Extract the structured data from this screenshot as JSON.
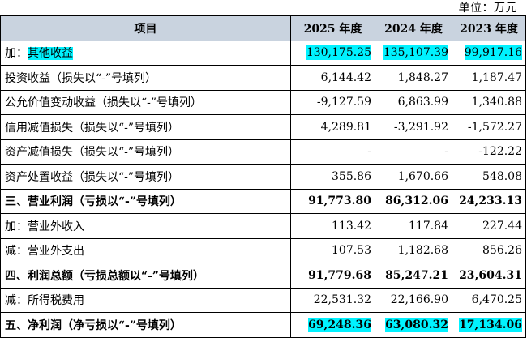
{
  "unit_label": "单位：万元",
  "header": {
    "item": "项目",
    "y2025": "2025 年度",
    "y2024": "2024 年度",
    "y2023": "2023 年度"
  },
  "highlight_color": "#00f2ff",
  "rows": [
    {
      "prefix": "加：",
      "label": "其他收益",
      "v2025": "130,175.25",
      "v2024": "135,107.39",
      "v2023": "99,917.16"
    },
    {
      "label": "投资收益（损失以“-”号填列）",
      "v2025": "6,144.42",
      "v2024": "1,848.27",
      "v2023": "1,187.47"
    },
    {
      "label": "公允价值变动收益（损失以“-”号填列）",
      "v2025": "-9,127.59",
      "v2024": "6,863.99",
      "v2023": "1,340.88"
    },
    {
      "label": "信用减值损失（损失以“-”号填列）",
      "v2025": "4,289.81",
      "v2024": "-3,291.92",
      "v2023": "-1,572.27"
    },
    {
      "label": "资产减值损失（损失以“-”号填列）",
      "v2025": "-",
      "v2024": "-",
      "v2023": "-122.22"
    },
    {
      "label": "资产处置收益（损失以“-”号填列）",
      "v2025": "355.86",
      "v2024": "1,670.66",
      "v2023": "548.08"
    },
    {
      "label": "三、营业利润（亏损以“-”号填列）",
      "v2025": "91,773.80",
      "v2024": "86,312.06",
      "v2023": "24,233.13"
    },
    {
      "label": "加：营业外收入",
      "v2025": "113.42",
      "v2024": "117.84",
      "v2023": "227.44"
    },
    {
      "label": "减：营业外支出",
      "v2025": "107.53",
      "v2024": "1,182.68",
      "v2023": "856.26"
    },
    {
      "label": "四、利润总额（亏损总额以“-”号填列）",
      "v2025": "91,779.68",
      "v2024": "85,247.21",
      "v2023": "23,604.31"
    },
    {
      "label": "减：所得税费用",
      "v2025": "22,531.32",
      "v2024": "22,166.90",
      "v2023": "6,470.25"
    },
    {
      "label": "五、净利润（净亏损以“-”号填列）",
      "v2025": "69,248.36",
      "v2024": "63,080.32",
      "v2023": "17,134.06"
    }
  ]
}
